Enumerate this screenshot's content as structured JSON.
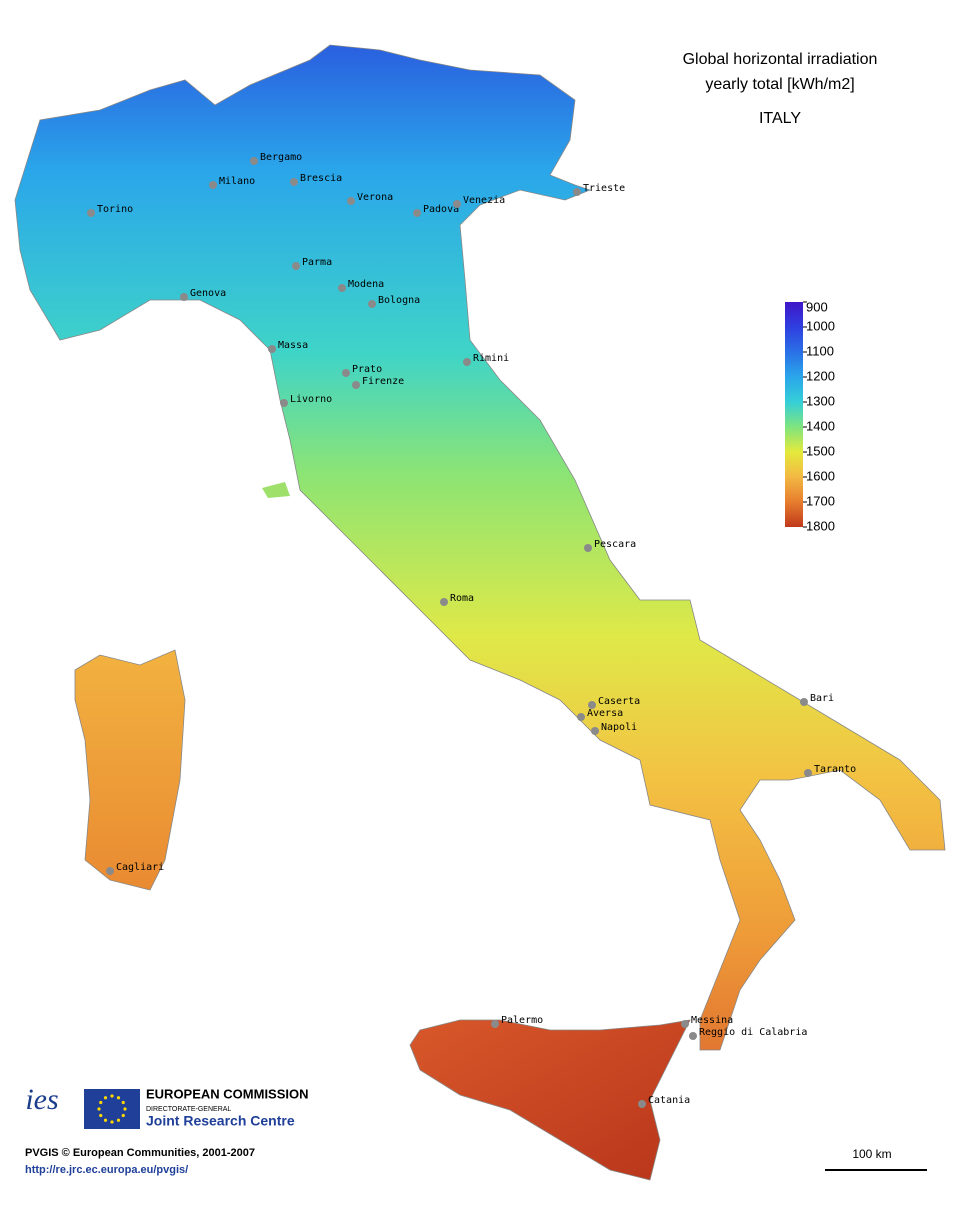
{
  "title": {
    "line1": "Global horizontal irradiation",
    "line2": "yearly total [kWh/m2]",
    "country": "ITALY"
  },
  "legend": {
    "range": [
      900,
      1800
    ],
    "ticks": [
      900,
      1000,
      1100,
      1200,
      1300,
      1400,
      1500,
      1600,
      1700,
      1800
    ],
    "colors": [
      "#3f16c8",
      "#2f3fe0",
      "#2a70e6",
      "#2aa6ea",
      "#35cfd8",
      "#7fe47e",
      "#e4ea3c",
      "#f3b843",
      "#e77d2e",
      "#c0391b"
    ]
  },
  "cities": [
    "Bergamo",
    "Milano",
    "Brescia",
    "Torino",
    "Verona",
    "Padova",
    "Venezia",
    "Trieste",
    "Parma",
    "Genova",
    "Modena",
    "Bologna",
    "Massa",
    "Rimini",
    "Prato",
    "Firenze",
    "Livorno",
    "Pescara",
    "Roma",
    "Caserta",
    "Bari",
    "Aversa",
    "Napoli",
    "Taranto",
    "Cagliari",
    "Palermo",
    "Messina",
    "Reggio di Calabria",
    "Catania"
  ],
  "logos": {
    "ies": "ies",
    "commission": "EUROPEAN COMMISSION",
    "directorate": "DIRECTORATE-GENERAL",
    "jrc": "Joint Research Centre"
  },
  "footer": {
    "copyright": "PVGIS © European Communities, 2001-2007",
    "url": "http://re.jrc.ec.europa.eu/pvgis/"
  },
  "scale_bar": "100 km"
}
